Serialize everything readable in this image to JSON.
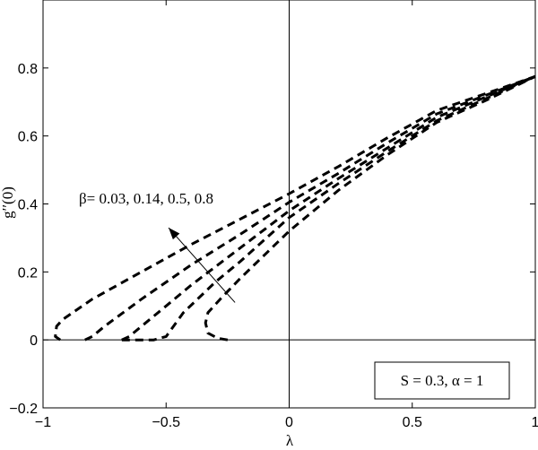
{
  "chart_data": {
    "type": "line",
    "title": "",
    "xlabel": "λ",
    "ylabel": "g′′(0)",
    "xlim": [
      -1,
      1
    ],
    "ylim": [
      -0.2,
      1.0
    ],
    "xticks": [
      -1,
      -0.5,
      0,
      0.5,
      1
    ],
    "xtick_labels": [
      "−1",
      "−0.5",
      "0",
      "0.5",
      "1"
    ],
    "yticks": [
      -0.2,
      0,
      0.2,
      0.4,
      0.6,
      0.8
    ],
    "ytick_labels": [
      "−0.2",
      "0",
      "0.2",
      "0.4",
      "0.6",
      "0.8"
    ],
    "grid": false,
    "line_style": "dashed",
    "line_color": "#000000",
    "reference_lines": {
      "x": 0,
      "y": 0
    },
    "annotations": {
      "beta_label": "β= 0.03, 0.14, 0.5, 0.8",
      "params_box": "S = 0.3, α = 1",
      "arrow": {
        "from": [
          -0.22,
          0.11
        ],
        "to": [
          -0.49,
          0.33
        ]
      }
    },
    "series": [
      {
        "points": [
          [
            -0.93,
            0.0
          ],
          [
            -0.95,
            0.01
          ],
          [
            -0.945,
            0.04
          ],
          [
            -0.92,
            0.06
          ],
          [
            -0.8,
            0.12
          ],
          [
            -0.6,
            0.2
          ],
          [
            -0.4,
            0.28
          ],
          [
            -0.2,
            0.355
          ],
          [
            0,
            0.43
          ],
          [
            0.2,
            0.51
          ],
          [
            0.4,
            0.595
          ],
          [
            0.6,
            0.675
          ],
          [
            0.8,
            0.725
          ],
          [
            1.0,
            0.775
          ]
        ]
      },
      {
        "points": [
          [
            -0.83,
            0.0
          ],
          [
            -0.8,
            0.01
          ],
          [
            -0.75,
            0.04
          ],
          [
            -0.6,
            0.12
          ],
          [
            -0.4,
            0.22
          ],
          [
            -0.2,
            0.31
          ],
          [
            0,
            0.405
          ],
          [
            0.2,
            0.49
          ],
          [
            0.4,
            0.58
          ],
          [
            0.6,
            0.665
          ],
          [
            0.8,
            0.72
          ],
          [
            1.0,
            0.775
          ]
        ]
      },
      {
        "points": [
          [
            -0.68,
            0.0
          ],
          [
            -0.65,
            0.01
          ],
          [
            -0.6,
            0.04
          ],
          [
            -0.5,
            0.1
          ],
          [
            -0.4,
            0.16
          ],
          [
            -0.2,
            0.27
          ],
          [
            0,
            0.38
          ],
          [
            0.2,
            0.475
          ],
          [
            0.4,
            0.565
          ],
          [
            0.6,
            0.655
          ],
          [
            0.8,
            0.715
          ],
          [
            1.0,
            0.775
          ]
        ]
      },
      {
        "points": [
          [
            -0.68,
            0.0
          ],
          [
            -0.55,
            0.0
          ],
          [
            -0.5,
            0.01
          ],
          [
            -0.47,
            0.04
          ],
          [
            -0.43,
            0.08
          ],
          [
            -0.3,
            0.17
          ],
          [
            -0.2,
            0.23
          ],
          [
            0,
            0.36
          ],
          [
            0.2,
            0.46
          ],
          [
            0.4,
            0.555
          ],
          [
            0.6,
            0.645
          ],
          [
            0.8,
            0.71
          ],
          [
            1.0,
            0.775
          ]
        ]
      },
      {
        "points": [
          [
            -0.25,
            0.0
          ],
          [
            -0.29,
            0.005
          ],
          [
            -0.33,
            0.02
          ],
          [
            -0.34,
            0.05
          ],
          [
            -0.33,
            0.08
          ],
          [
            -0.28,
            0.12
          ],
          [
            -0.2,
            0.18
          ],
          [
            0,
            0.32
          ],
          [
            0.2,
            0.44
          ],
          [
            0.4,
            0.545
          ],
          [
            0.6,
            0.64
          ],
          [
            0.8,
            0.705
          ],
          [
            1.0,
            0.775
          ]
        ]
      }
    ]
  }
}
